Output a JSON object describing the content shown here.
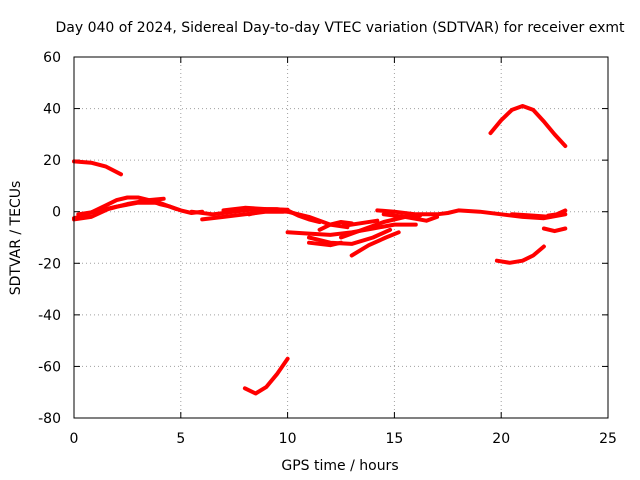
{
  "chart_data": {
    "type": "line",
    "title": "Day 040 of 2024, Sidereal Day-to-day VTEC variation (SDTVAR) for receiver exmt",
    "xlabel": "GPS time / hours",
    "ylabel": "SDTVAR / TECUs",
    "xlim": [
      0,
      25
    ],
    "ylim": [
      -80,
      60
    ],
    "xticks": [
      0,
      5,
      10,
      15,
      20,
      25
    ],
    "yticks": [
      -80,
      -60,
      -40,
      -20,
      0,
      20,
      40,
      60
    ],
    "grid": true,
    "color": "#ff0000",
    "series": [
      {
        "name": "arc-early-high",
        "points": [
          [
            0,
            19.5
          ],
          [
            0.8,
            19
          ],
          [
            1.5,
            17.5
          ],
          [
            2.2,
            14.5
          ]
        ]
      },
      {
        "name": "arc-early-low-1",
        "points": [
          [
            0,
            -2.5
          ],
          [
            0.5,
            -1.5
          ],
          [
            1,
            0.5
          ],
          [
            1.5,
            2.5
          ],
          [
            2,
            4.5
          ],
          [
            2.5,
            5.5
          ],
          [
            3,
            5.5
          ],
          [
            3.5,
            4.5
          ],
          [
            4,
            3
          ],
          [
            4.5,
            2
          ],
          [
            5,
            0.5
          ],
          [
            5.5,
            -0.5
          ],
          [
            6,
            0
          ]
        ]
      },
      {
        "name": "arc-early-low-2",
        "points": [
          [
            0.2,
            -1
          ],
          [
            1,
            0
          ],
          [
            2,
            2
          ],
          [
            3,
            3.5
          ],
          [
            4,
            3.5
          ],
          [
            4.8,
            1
          ]
        ]
      },
      {
        "name": "arc-early-low-3",
        "points": [
          [
            0,
            -3
          ],
          [
            0.8,
            -2
          ],
          [
            1.6,
            1
          ],
          [
            2.5,
            3
          ],
          [
            3.5,
            4.5
          ],
          [
            4.2,
            5
          ]
        ]
      },
      {
        "name": "arc-mid-1",
        "points": [
          [
            5.5,
            0
          ],
          [
            6.5,
            -1
          ],
          [
            7.5,
            0
          ],
          [
            8.5,
            1
          ],
          [
            9.5,
            1
          ],
          [
            10,
            0.5
          ],
          [
            10.5,
            -1.5
          ],
          [
            11,
            -3
          ],
          [
            11.5,
            -4
          ]
        ]
      },
      {
        "name": "arc-mid-2",
        "points": [
          [
            6,
            -3
          ],
          [
            7,
            -2
          ],
          [
            8,
            -1
          ],
          [
            9,
            0
          ],
          [
            9.8,
            0
          ]
        ]
      },
      {
        "name": "arc-mid-3",
        "points": [
          [
            8.2,
            -1
          ],
          [
            9,
            0.5
          ],
          [
            10,
            0
          ],
          [
            11,
            -2
          ],
          [
            12,
            -5
          ],
          [
            12.8,
            -6
          ]
        ]
      },
      {
        "name": "arc-mid-4",
        "points": [
          [
            7,
            0.5
          ],
          [
            8,
            1.5
          ],
          [
            9,
            1
          ],
          [
            10,
            0.8
          ]
        ]
      },
      {
        "name": "arc-dip",
        "points": [
          [
            8,
            -68.5
          ],
          [
            8.5,
            -70.5
          ],
          [
            9,
            -68
          ],
          [
            9.5,
            -63
          ],
          [
            10,
            -57
          ]
        ]
      },
      {
        "name": "arc-trough-1",
        "points": [
          [
            10,
            -8
          ],
          [
            11,
            -8.5
          ],
          [
            12,
            -9
          ],
          [
            13,
            -8
          ],
          [
            14,
            -6.5
          ],
          [
            15,
            -5
          ],
          [
            16,
            -5
          ]
        ]
      },
      {
        "name": "arc-trough-2",
        "points": [
          [
            11,
            -10
          ],
          [
            12,
            -12
          ],
          [
            13,
            -12.5
          ],
          [
            14,
            -10
          ],
          [
            14.8,
            -7
          ]
        ]
      },
      {
        "name": "arc-trough-3",
        "points": [
          [
            11.5,
            -7
          ],
          [
            12,
            -5
          ],
          [
            12.5,
            -4
          ],
          [
            13,
            -4.5
          ]
        ]
      },
      {
        "name": "arc-trough-4",
        "points": [
          [
            12.5,
            -10
          ],
          [
            13.5,
            -7
          ],
          [
            14.5,
            -4
          ],
          [
            15.5,
            -2
          ],
          [
            16.2,
            -1.5
          ]
        ]
      },
      {
        "name": "arc-trough-5",
        "points": [
          [
            13,
            -17
          ],
          [
            13.8,
            -13
          ],
          [
            14.6,
            -10
          ],
          [
            15.2,
            -8
          ]
        ]
      },
      {
        "name": "arc-trough-6",
        "points": [
          [
            11,
            -12
          ],
          [
            12,
            -13
          ],
          [
            12.5,
            -12
          ]
        ]
      },
      {
        "name": "arc-trough-7",
        "points": [
          [
            12.6,
            -5.5
          ],
          [
            13.4,
            -4.5
          ],
          [
            14.2,
            -3.5
          ]
        ]
      },
      {
        "name": "arc-late-1",
        "points": [
          [
            14.2,
            0.5
          ],
          [
            15,
            0
          ],
          [
            16,
            -1
          ],
          [
            17,
            -1
          ],
          [
            17.5,
            -0.5
          ],
          [
            18,
            0.5
          ],
          [
            19,
            0
          ],
          [
            20,
            -1
          ],
          [
            21,
            -2
          ],
          [
            22,
            -2.5
          ],
          [
            23,
            -1
          ]
        ]
      },
      {
        "name": "arc-late-2",
        "points": [
          [
            14.5,
            -1
          ],
          [
            15.5,
            -2
          ],
          [
            16.5,
            -3.5
          ],
          [
            17,
            -2
          ]
        ]
      },
      {
        "name": "arc-late-3",
        "points": [
          [
            20.5,
            -1
          ],
          [
            21.5,
            -1.5
          ],
          [
            22.3,
            -2
          ]
        ]
      },
      {
        "name": "arc-late-4",
        "points": [
          [
            22,
            -6.5
          ],
          [
            22.5,
            -7.5
          ],
          [
            23,
            -6.5
          ]
        ]
      },
      {
        "name": "arc-late-5",
        "points": [
          [
            22.2,
            -1.5
          ],
          [
            22.6,
            -1
          ],
          [
            23,
            0.5
          ]
        ]
      },
      {
        "name": "arc-late-high",
        "points": [
          [
            19.5,
            30.5
          ],
          [
            20,
            35.5
          ],
          [
            20.5,
            39.5
          ],
          [
            21,
            41
          ],
          [
            21.5,
            39.5
          ],
          [
            22,
            35
          ],
          [
            22.5,
            30
          ],
          [
            23,
            25.5
          ]
        ]
      },
      {
        "name": "arc-late-low",
        "points": [
          [
            19.8,
            -19
          ],
          [
            20.4,
            -19.8
          ],
          [
            21,
            -19
          ],
          [
            21.5,
            -17
          ],
          [
            22,
            -13.5
          ]
        ]
      }
    ]
  }
}
